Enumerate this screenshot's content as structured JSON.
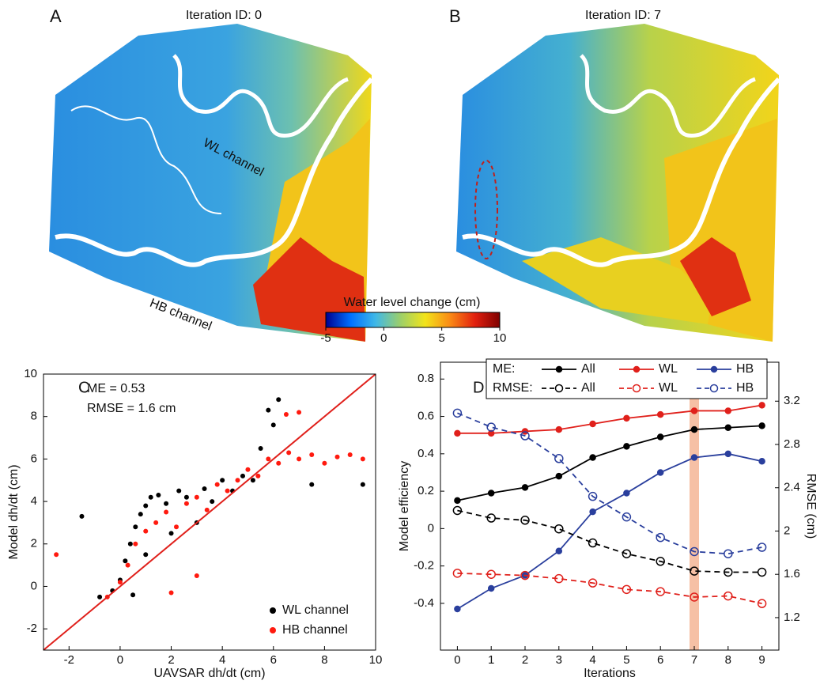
{
  "maps": {
    "panels": [
      {
        "letter": "A",
        "title": "Iteration ID: 0"
      },
      {
        "letter": "B",
        "title": "Iteration ID: 7"
      }
    ],
    "annotations": [
      "WL channel",
      "HB channel"
    ],
    "colorbar": {
      "title": "Water level change (cm)",
      "lim": [
        -5,
        10
      ],
      "ticks": [
        -5,
        0,
        5,
        10
      ],
      "colors": [
        "#00008f",
        "#0070ff",
        "#3fb8e8",
        "#9ccf6a",
        "#f2e41a",
        "#fa8a15",
        "#e2200f",
        "#7f0000"
      ]
    }
  },
  "chart_data": [
    {
      "type": "scatter",
      "panel": "C",
      "xlabel": "UAVSAR dh/dt (cm)",
      "ylabel": "Model dh/dt (cm)",
      "annotations": [
        "ME = 0.53",
        "RMSE = 1.6 cm"
      ],
      "xlim": [
        -3,
        10
      ],
      "ylim": [
        -3,
        10
      ],
      "xticks": [
        -2,
        0,
        2,
        4,
        6,
        8,
        10
      ],
      "yticks": [
        -2,
        0,
        2,
        4,
        6,
        8,
        10
      ],
      "legend": "lower right",
      "identity_line_color": "#e0201b",
      "series": [
        {
          "name": "WL channel",
          "color": "#000000",
          "x": [
            -0.8,
            -0.3,
            0.0,
            0.2,
            0.4,
            0.6,
            0.8,
            1.0,
            1.2,
            1.5,
            1.8,
            2.0,
            2.3,
            2.6,
            3.0,
            3.3,
            3.6,
            4.0,
            4.4,
            4.8,
            5.2,
            5.5,
            5.8,
            6.0,
            -1.5,
            0.5,
            1.0,
            6.2,
            7.5,
            9.5
          ],
          "values": [
            -0.5,
            -0.2,
            0.3,
            1.2,
            2.0,
            2.8,
            3.4,
            3.8,
            4.2,
            4.3,
            3.9,
            2.5,
            4.5,
            4.2,
            3.0,
            4.6,
            4.0,
            5.0,
            4.5,
            5.2,
            5.0,
            6.5,
            8.3,
            7.6,
            3.3,
            -0.4,
            1.5,
            8.8,
            4.8,
            4.8
          ]
        },
        {
          "name": "HB channel",
          "color": "#ff1a0f",
          "x": [
            -0.5,
            0.0,
            0.3,
            0.6,
            1.0,
            1.4,
            1.8,
            2.2,
            2.6,
            3.0,
            3.4,
            3.8,
            4.2,
            4.6,
            5.0,
            5.4,
            5.8,
            6.2,
            6.6,
            7.0,
            7.5,
            8.0,
            8.5,
            9.0,
            9.5,
            2.0,
            3.0,
            6.5,
            7.0,
            -2.5
          ],
          "values": [
            -0.5,
            0.2,
            1.0,
            2.0,
            2.6,
            3.0,
            3.5,
            2.8,
            3.9,
            4.2,
            3.6,
            4.8,
            4.5,
            5.0,
            5.5,
            5.2,
            6.0,
            5.8,
            6.3,
            6.0,
            6.2,
            5.8,
            6.1,
            6.2,
            6.0,
            -0.3,
            0.5,
            8.1,
            8.2,
            1.5
          ]
        }
      ]
    },
    {
      "type": "line",
      "panel": "D",
      "xlabel": "Iterations",
      "ylabel": "Model efficiency",
      "y2label": "RMSE (cm)",
      "x": [
        0,
        1,
        2,
        3,
        4,
        5,
        6,
        7,
        8,
        9
      ],
      "xlim": [
        -0.5,
        9.5
      ],
      "xticks": [
        0,
        1,
        2,
        3,
        4,
        5,
        6,
        7,
        8,
        9
      ],
      "ylim": [
        -0.65,
        0.89
      ],
      "yticks": [
        -0.4,
        -0.2,
        0,
        0.2,
        0.4,
        0.6,
        0.8
      ],
      "y2lim": [
        0.9,
        3.56
      ],
      "y2ticks": [
        1.2,
        1.6,
        2.0,
        2.4,
        2.8,
        3.2
      ],
      "highlight_x": 7,
      "highlight_color": "#f4b08e",
      "legend_groups": [
        "ME:",
        "RMSE:"
      ],
      "series": [
        {
          "name": "All",
          "color": "#000000",
          "style": "solid",
          "group": 0,
          "values": [
            0.15,
            0.19,
            0.22,
            0.28,
            0.38,
            0.44,
            0.49,
            0.53,
            0.54,
            0.55
          ]
        },
        {
          "name": "WL",
          "color": "#e0201b",
          "style": "solid",
          "group": 0,
          "values": [
            0.51,
            0.51,
            0.52,
            0.53,
            0.56,
            0.59,
            0.61,
            0.63,
            0.63,
            0.66
          ]
        },
        {
          "name": "HB",
          "color": "#2a3f9d",
          "style": "solid",
          "group": 0,
          "values": [
            -0.43,
            -0.32,
            -0.25,
            -0.12,
            0.09,
            0.19,
            0.3,
            0.38,
            0.4,
            0.36
          ]
        },
        {
          "name": "All",
          "color": "#000000",
          "style": "dashed",
          "group": 1,
          "axis": "y2",
          "values": [
            2.19,
            2.12,
            2.1,
            2.02,
            1.89,
            1.79,
            1.72,
            1.63,
            1.62,
            1.62
          ]
        },
        {
          "name": "WL",
          "color": "#e0201b",
          "style": "dashed",
          "group": 1,
          "axis": "y2",
          "values": [
            1.61,
            1.6,
            1.59,
            1.56,
            1.52,
            1.46,
            1.44,
            1.39,
            1.4,
            1.33
          ]
        },
        {
          "name": "HB",
          "color": "#2a3f9d",
          "style": "dashed",
          "group": 1,
          "axis": "y2",
          "values": [
            3.09,
            2.96,
            2.88,
            2.67,
            2.32,
            2.13,
            1.94,
            1.81,
            1.79,
            1.85
          ]
        }
      ]
    }
  ]
}
